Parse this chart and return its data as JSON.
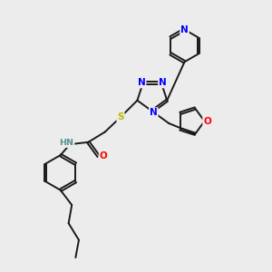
{
  "background_color": "#ececec",
  "bond_color": "#1a1a1a",
  "figsize": [
    3.0,
    3.0
  ],
  "dpi": 100,
  "atom_colors": {
    "N": "#0000FF",
    "O": "#FF0000",
    "S": "#BBBB00",
    "C": "#1a1a1a",
    "H": "#5a9090"
  }
}
